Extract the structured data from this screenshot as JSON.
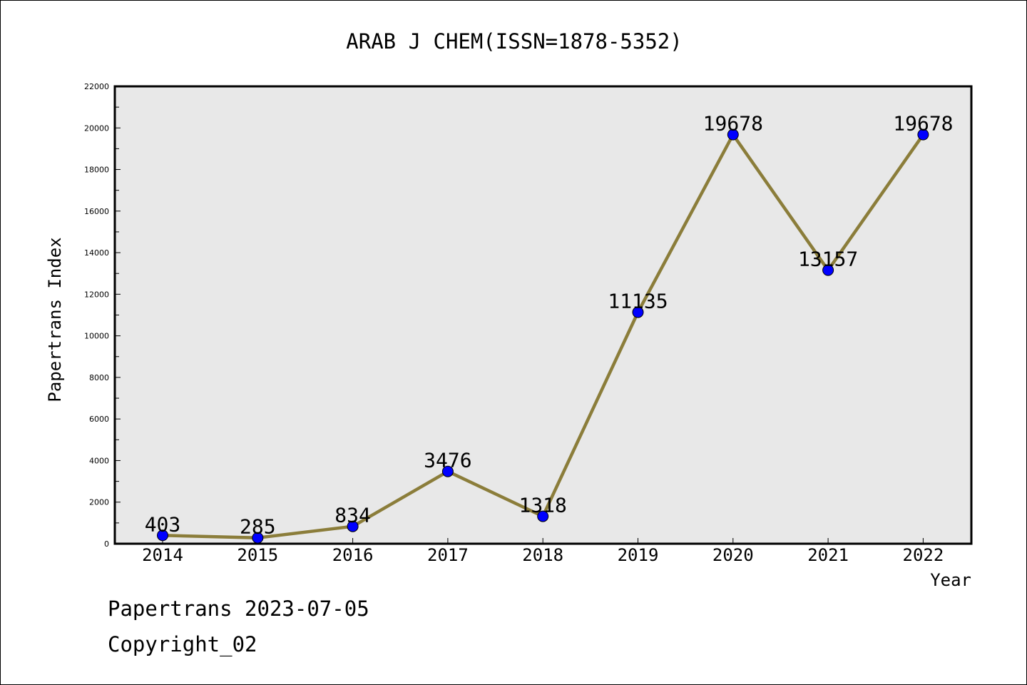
{
  "chart_data": {
    "type": "line",
    "title": "ARAB J CHEM(ISSN=1878-5352)",
    "xlabel": "Year",
    "ylabel": "Papertrans Index",
    "categories": [
      "2014",
      "2015",
      "2016",
      "2017",
      "2018",
      "2019",
      "2020",
      "2021",
      "2022"
    ],
    "series": [
      {
        "values": [
          403,
          285,
          834,
          3476,
          1318,
          11135,
          19678,
          13157,
          19678
        ],
        "data_labels": [
          "403",
          "285",
          "834",
          "3476",
          "1318",
          "11135",
          "19678",
          "13157",
          "19678"
        ]
      }
    ],
    "ylim": [
      0,
      22000
    ],
    "y_ticks": [
      0,
      2000,
      4000,
      6000,
      8000,
      10000,
      12000,
      14000,
      16000,
      18000,
      20000,
      22000
    ],
    "y_tick_labels": [
      "0",
      "2000",
      "4000",
      "6000",
      "8000",
      "10000",
      "12000",
      "14000",
      "16000",
      "18000",
      "20000",
      "22000"
    ],
    "grid": false,
    "legend": "none",
    "colors": {
      "line": "#8b7d3a",
      "marker": "#0000ff",
      "plot_background": "#e8e8e8"
    }
  },
  "footer": {
    "line1": "Papertrans 2023-07-05",
    "line2": "Copyright_02"
  }
}
